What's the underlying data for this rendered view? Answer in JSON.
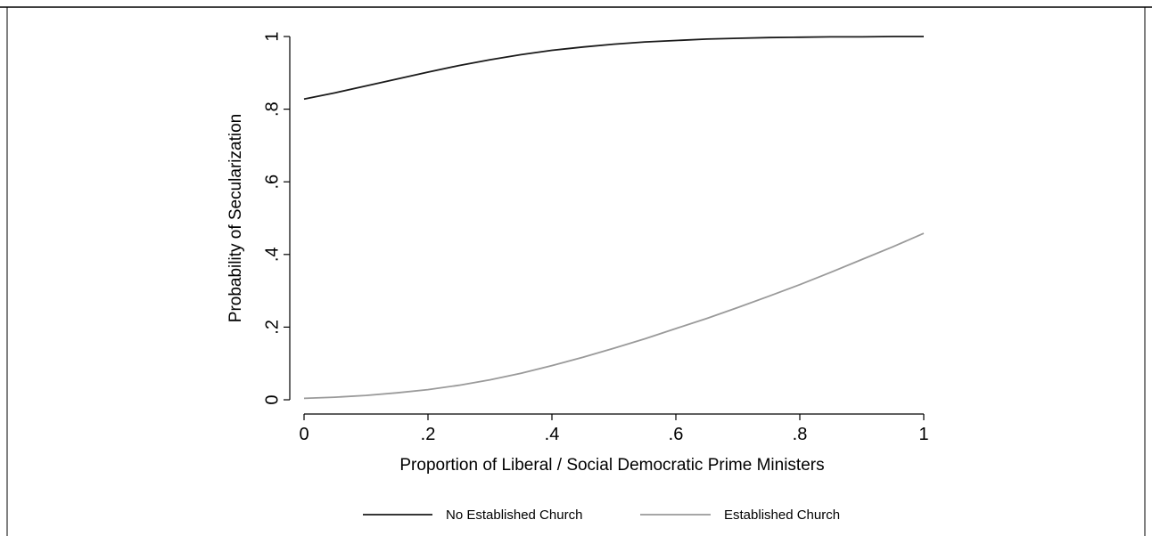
{
  "chart_data": {
    "type": "line",
    "title": "",
    "xlabel": "Proportion of Liberal / Social Democratic Prime Ministers",
    "ylabel": "Probability of Secularization",
    "xlim": [
      0,
      1
    ],
    "ylim": [
      0,
      1
    ],
    "x_ticks": [
      {
        "value": 0,
        "label": "0"
      },
      {
        "value": 0.2,
        "label": ".2"
      },
      {
        "value": 0.4,
        "label": ".4"
      },
      {
        "value": 0.6,
        "label": ".6"
      },
      {
        "value": 0.8,
        "label": ".8"
      },
      {
        "value": 1,
        "label": "1"
      }
    ],
    "y_ticks": [
      {
        "value": 0,
        "label": "0"
      },
      {
        "value": 0.2,
        "label": ".2"
      },
      {
        "value": 0.4,
        "label": ".4"
      },
      {
        "value": 0.6,
        "label": ".6"
      },
      {
        "value": 0.8,
        "label": ".8"
      },
      {
        "value": 1,
        "label": "1"
      }
    ],
    "x": [
      0,
      0.05,
      0.1,
      0.15,
      0.2,
      0.25,
      0.3,
      0.35,
      0.4,
      0.45,
      0.5,
      0.55,
      0.6,
      0.65,
      0.7,
      0.75,
      0.8,
      0.85,
      0.9,
      0.95,
      1
    ],
    "series": [
      {
        "name": "No Established Church",
        "color": "#1a1a1a",
        "values": [
          0.828,
          0.845,
          0.864,
          0.883,
          0.902,
          0.92,
          0.936,
          0.95,
          0.962,
          0.971,
          0.979,
          0.985,
          0.989,
          0.993,
          0.995,
          0.997,
          0.998,
          0.999,
          0.999,
          1.0,
          1.0
        ]
      },
      {
        "name": "Established Church",
        "color": "#9a9a9a",
        "values": [
          0.004,
          0.007,
          0.012,
          0.019,
          0.028,
          0.04,
          0.055,
          0.073,
          0.094,
          0.117,
          0.142,
          0.168,
          0.196,
          0.224,
          0.254,
          0.285,
          0.317,
          0.351,
          0.386,
          0.421,
          0.458
        ]
      }
    ],
    "grid": false,
    "legend_position": "bottom"
  }
}
